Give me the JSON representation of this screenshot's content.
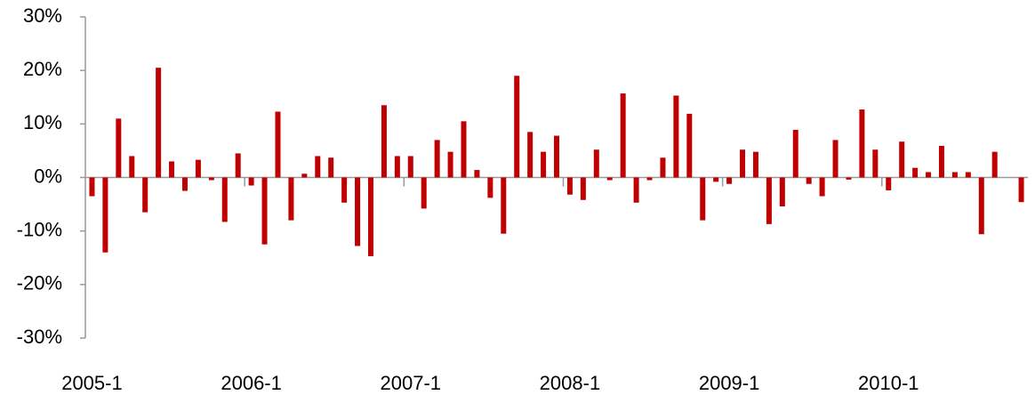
{
  "chart_data": {
    "type": "bar",
    "color": "#c00000",
    "categories": [
      "2005-1",
      null,
      null,
      null,
      null,
      null,
      null,
      null,
      null,
      null,
      null,
      null,
      "2006-1",
      null,
      null,
      null,
      null,
      null,
      null,
      null,
      null,
      null,
      null,
      null,
      "2007-1",
      null,
      null,
      null,
      null,
      null,
      null,
      null,
      null,
      null,
      null,
      null,
      "2008-1",
      null,
      null,
      null,
      null,
      null,
      null,
      null,
      null,
      null,
      null,
      null,
      "2009-1",
      null,
      null,
      null,
      null,
      null,
      null,
      null,
      null,
      null,
      null,
      null,
      "2010-1",
      null,
      null,
      null,
      null,
      null,
      null,
      null,
      null,
      null,
      null
    ],
    "values": [
      -3.5,
      -14,
      11,
      4,
      -6.5,
      20.5,
      3,
      -2.5,
      3.3,
      -0.5,
      -8.3,
      4.5,
      -1.5,
      -12.5,
      12.3,
      -8,
      0.7,
      4,
      3.7,
      -4.7,
      -12.8,
      -14.7,
      13.5,
      4,
      4,
      -5.8,
      7,
      4.8,
      10.5,
      1.4,
      -3.8,
      -10.5,
      19,
      8.5,
      4.8,
      7.8,
      -3.2,
      -4.2,
      5.2,
      -0.5,
      15.7,
      -4.7,
      -0.5,
      3.7,
      15.3,
      11.9,
      -8,
      -0.8,
      -1.2,
      5.2,
      4.8,
      -8.7,
      -5.4,
      8.9,
      -1.2,
      -3.5,
      7,
      -0.4,
      12.7,
      5.2,
      -2.4,
      6.7,
      1.8,
      1,
      5.9,
      1,
      1,
      -10.6,
      4.8,
      0,
      -4.6
    ],
    "ylim": [
      -30,
      30
    ],
    "yticks": [
      {
        "value": -30,
        "label": "-30%"
      },
      {
        "value": -20,
        "label": "-20%"
      },
      {
        "value": -10,
        "label": "-10%"
      },
      {
        "value": 0,
        "label": "0%"
      },
      {
        "value": 10,
        "label": "10%"
      },
      {
        "value": 20,
        "label": "20%"
      },
      {
        "value": 30,
        "label": "30%"
      }
    ]
  }
}
